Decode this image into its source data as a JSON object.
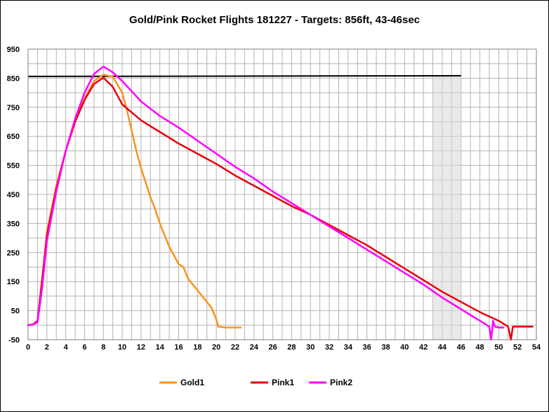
{
  "chart_data": {
    "type": "line",
    "title": "Gold/Pink Rocket Flights 181227 - Targets: 856ft, 43-46sec",
    "xlabel": "",
    "ylabel": "",
    "xlim": [
      0,
      54
    ],
    "ylim": [
      -50,
      950
    ],
    "x_ticks": [
      0,
      2,
      4,
      6,
      8,
      10,
      12,
      14,
      16,
      18,
      20,
      22,
      24,
      26,
      28,
      30,
      32,
      34,
      36,
      38,
      40,
      42,
      44,
      46,
      48,
      50,
      52,
      54
    ],
    "y_ticks": [
      -50,
      50,
      150,
      250,
      350,
      450,
      550,
      650,
      750,
      850,
      950
    ],
    "grid": true,
    "legend_position": "bottom",
    "target_altitude": 856,
    "target_time_window": [
      43,
      46
    ],
    "series": [
      {
        "name": "Gold1",
        "color": "#f7941d",
        "points": [
          [
            0,
            0
          ],
          [
            0.5,
            2
          ],
          [
            1,
            10
          ],
          [
            1.5,
            150
          ],
          [
            2,
            320
          ],
          [
            3,
            480
          ],
          [
            4,
            600
          ],
          [
            5,
            700
          ],
          [
            6,
            780
          ],
          [
            7,
            840
          ],
          [
            8,
            862
          ],
          [
            9,
            855
          ],
          [
            10,
            800
          ],
          [
            10.5,
            740
          ],
          [
            11,
            670
          ],
          [
            11.5,
            600
          ],
          [
            12,
            540
          ],
          [
            12.5,
            490
          ],
          [
            13,
            440
          ],
          [
            13.5,
            400
          ],
          [
            14,
            350
          ],
          [
            14.5,
            310
          ],
          [
            15,
            270
          ],
          [
            15.5,
            240
          ],
          [
            16,
            210
          ],
          [
            16.5,
            200
          ],
          [
            17,
            160
          ],
          [
            17.5,
            140
          ],
          [
            18,
            120
          ],
          [
            18.5,
            100
          ],
          [
            19,
            80
          ],
          [
            19.5,
            60
          ],
          [
            20,
            20
          ],
          [
            20.2,
            -5
          ],
          [
            21,
            -8
          ],
          [
            22,
            -8
          ],
          [
            22.6,
            -8
          ]
        ]
      },
      {
        "name": "Pink1",
        "color": "#e8000b",
        "points": [
          [
            0,
            0
          ],
          [
            0.5,
            2
          ],
          [
            1,
            15
          ],
          [
            1.5,
            160
          ],
          [
            2,
            310
          ],
          [
            3,
            470
          ],
          [
            4,
            600
          ],
          [
            5,
            700
          ],
          [
            6,
            775
          ],
          [
            7,
            830
          ],
          [
            8,
            852
          ],
          [
            9,
            820
          ],
          [
            10,
            760
          ],
          [
            12,
            705
          ],
          [
            14,
            665
          ],
          [
            16,
            625
          ],
          [
            18,
            590
          ],
          [
            20,
            555
          ],
          [
            22,
            515
          ],
          [
            24,
            480
          ],
          [
            26,
            445
          ],
          [
            28,
            410
          ],
          [
            30,
            380
          ],
          [
            32,
            345
          ],
          [
            34,
            310
          ],
          [
            36,
            275
          ],
          [
            38,
            235
          ],
          [
            40,
            195
          ],
          [
            42,
            155
          ],
          [
            44,
            115
          ],
          [
            46,
            80
          ],
          [
            48,
            45
          ],
          [
            50,
            15
          ],
          [
            51,
            -5
          ],
          [
            51.3,
            -50
          ],
          [
            51.5,
            -5
          ],
          [
            53,
            -5
          ],
          [
            53.6,
            -5
          ]
        ]
      },
      {
        "name": "Pink2",
        "color": "#ff00ff",
        "points": [
          [
            0,
            0
          ],
          [
            0.5,
            2
          ],
          [
            1,
            10
          ],
          [
            1.5,
            130
          ],
          [
            2,
            290
          ],
          [
            3,
            460
          ],
          [
            4,
            600
          ],
          [
            5,
            710
          ],
          [
            6,
            800
          ],
          [
            7,
            865
          ],
          [
            8,
            890
          ],
          [
            9,
            870
          ],
          [
            10,
            840
          ],
          [
            12,
            770
          ],
          [
            14,
            720
          ],
          [
            16,
            680
          ],
          [
            18,
            635
          ],
          [
            20,
            590
          ],
          [
            22,
            545
          ],
          [
            24,
            505
          ],
          [
            26,
            460
          ],
          [
            28,
            420
          ],
          [
            30,
            380
          ],
          [
            32,
            340
          ],
          [
            34,
            300
          ],
          [
            36,
            260
          ],
          [
            38,
            220
          ],
          [
            40,
            180
          ],
          [
            42,
            140
          ],
          [
            44,
            95
          ],
          [
            46,
            55
          ],
          [
            48,
            15
          ],
          [
            49,
            -5
          ],
          [
            49.2,
            -50
          ],
          [
            49.4,
            15
          ],
          [
            49.6,
            -5
          ],
          [
            50,
            -8
          ],
          [
            50.5,
            -8
          ]
        ]
      }
    ]
  }
}
